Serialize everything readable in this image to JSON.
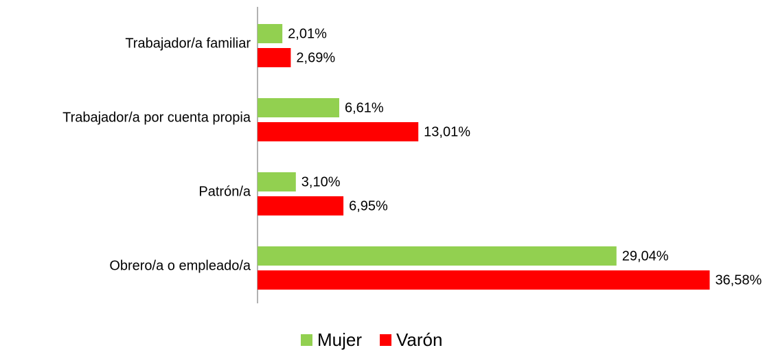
{
  "chart_data": {
    "type": "hbar",
    "categories": [
      "Trabajador/a familiar",
      "Trabajador/a por cuenta propia",
      "Patrón/a",
      "Obrero/a o empleado/a"
    ],
    "series": [
      {
        "name": "Mujer",
        "color": "#92d050",
        "values": [
          2.01,
          6.61,
          3.1,
          29.04
        ],
        "value_labels": [
          "2,01%",
          "6,61%",
          "3,10%",
          "29,04%"
        ]
      },
      {
        "name": "Varón",
        "color": "#ff0000",
        "values": [
          2.69,
          13.01,
          6.95,
          36.58
        ],
        "value_labels": [
          "2,69%",
          "13,01%",
          "6,95%",
          "36,58%"
        ]
      }
    ],
    "xlim": [
      0,
      40
    ],
    "legend": "bottom"
  }
}
